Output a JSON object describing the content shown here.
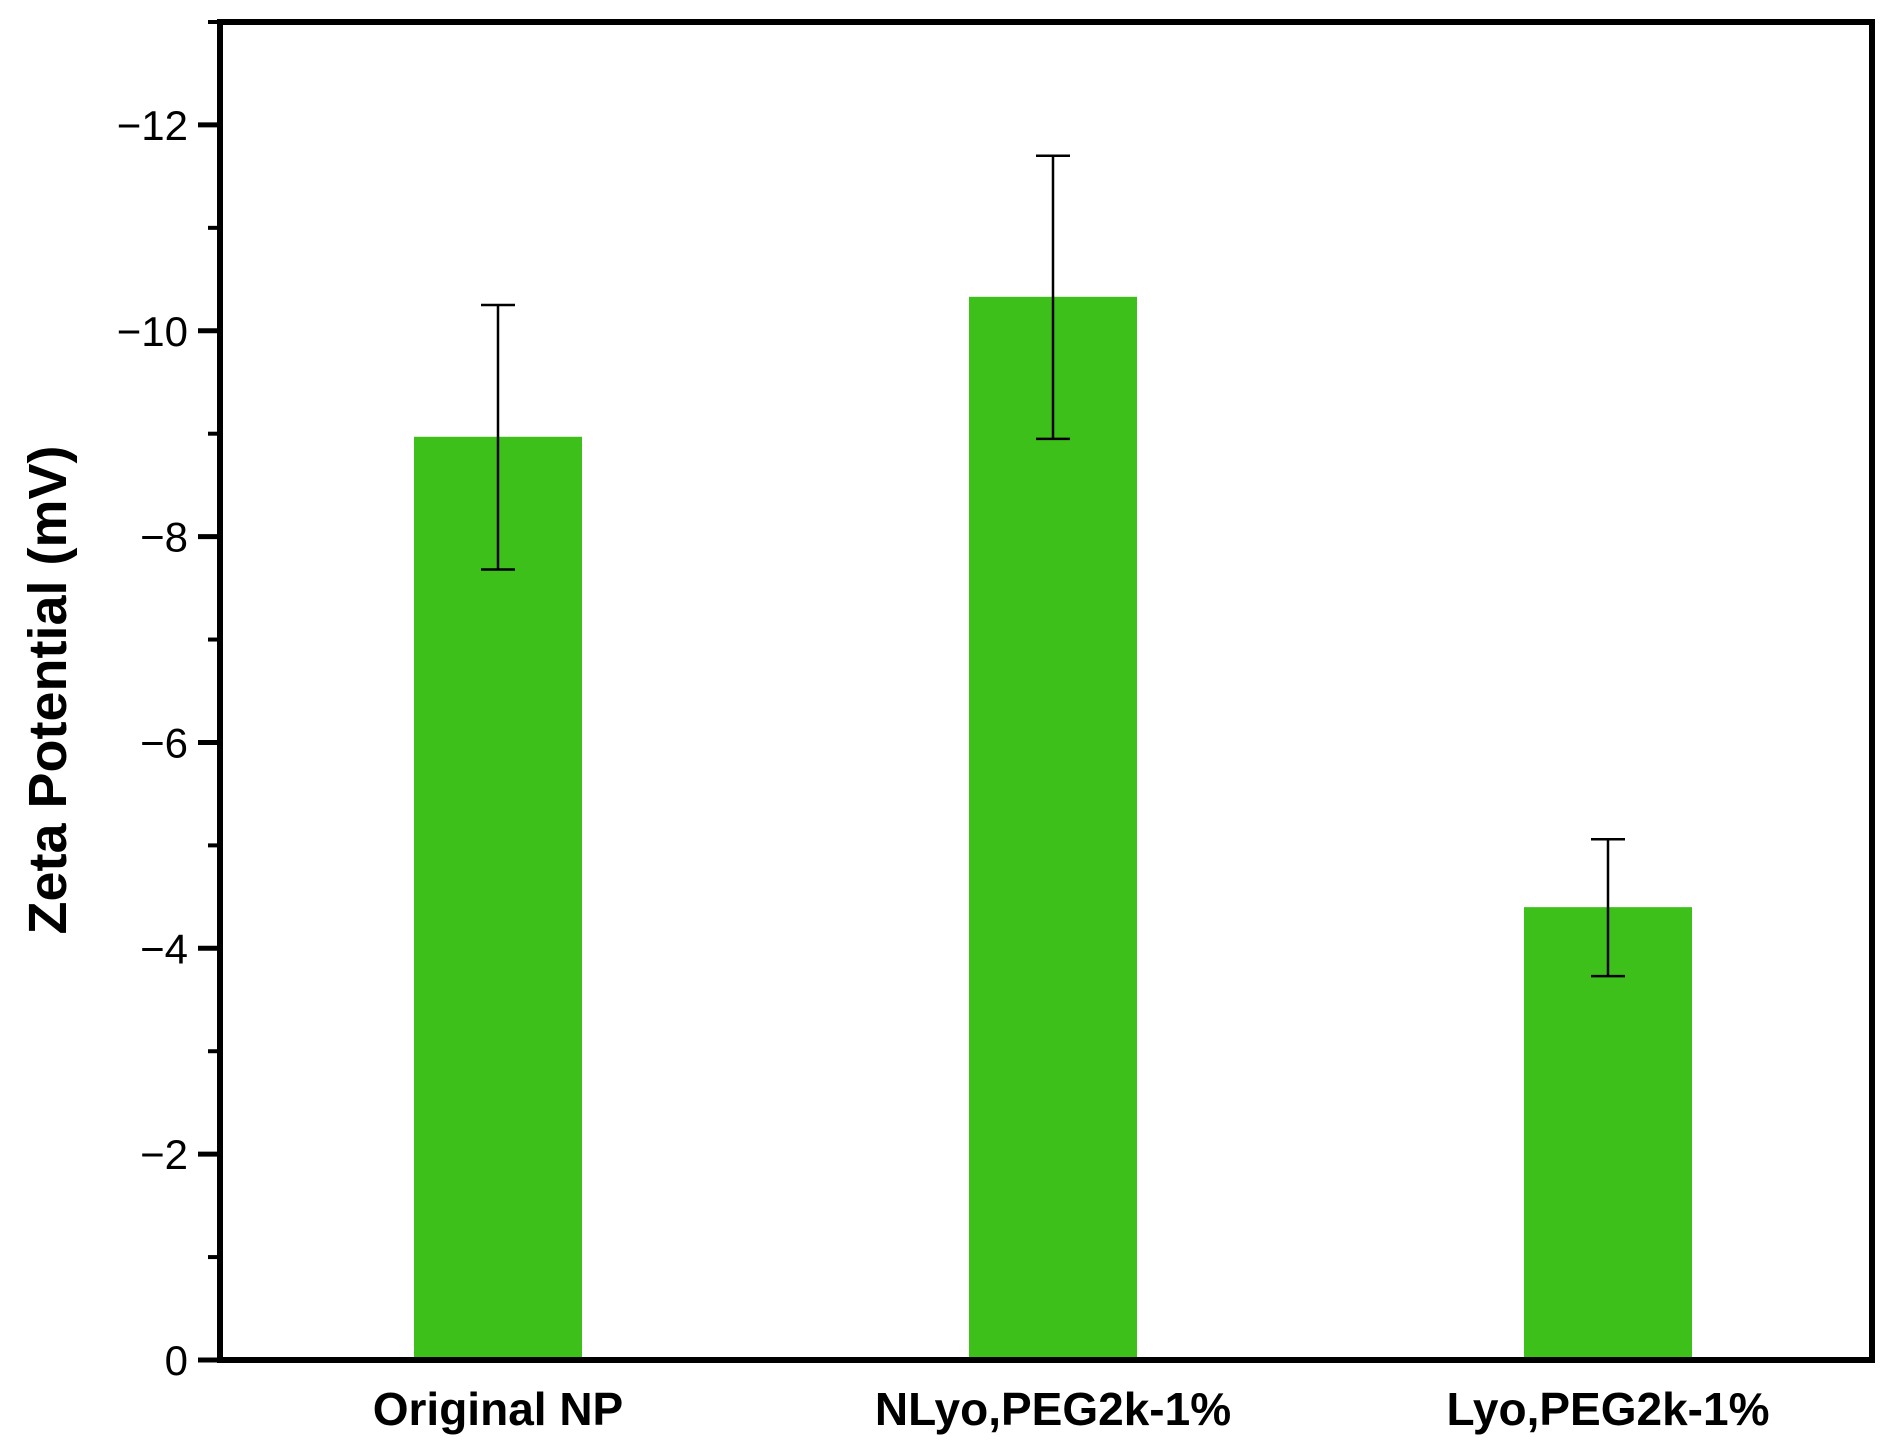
{
  "chart_data": {
    "type": "bar",
    "title": "",
    "xlabel": "",
    "ylabel": "Zeta  Potential (mV)",
    "categories": [
      "Original NP",
      "NLyo,PEG2k-1%",
      "Lyo,PEG2k-1%"
    ],
    "values": [
      -8.97,
      -10.33,
      -4.4
    ],
    "error_low": [
      -7.68,
      -8.95,
      -3.73
    ],
    "error_high": [
      -10.25,
      -11.7,
      -5.06
    ],
    "ylim": [
      0,
      -13
    ],
    "y_inverted": true,
    "yticks": [
      0,
      -2,
      -4,
      -6,
      -8,
      -10,
      -12
    ],
    "ytick_labels": [
      "0",
      "−2",
      "−4",
      "−6",
      "−8",
      "−10",
      "−12"
    ],
    "bar_color": "#3dc11a",
    "grid": false,
    "legend": "none"
  }
}
